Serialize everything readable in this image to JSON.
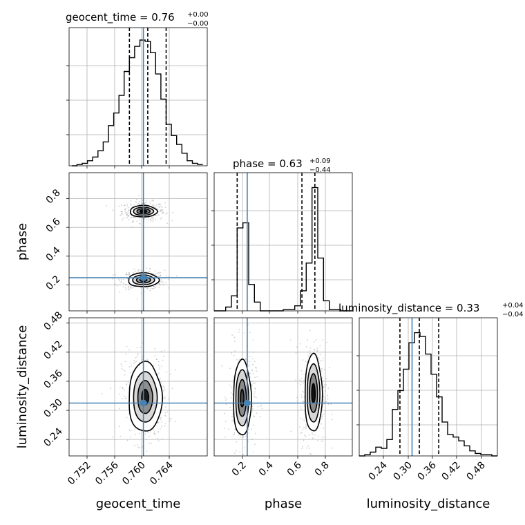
{
  "chart_data": {
    "type": "corner",
    "parameters": [
      "geocent_time",
      "phase",
      "luminosity_distance"
    ],
    "ranges": {
      "geocent_time": [
        0.7497,
        0.7655
      ],
      "phase": [
        0.02,
        0.98
      ],
      "luminosity_distance": [
        0.206,
        0.491
      ]
    },
    "ticks": {
      "geocent_time": [
        "0.752",
        "0.756",
        "0.760",
        "0.764"
      ],
      "phase": [
        "0.2",
        "0.4",
        "0.6",
        "0.8"
      ],
      "luminosity_distance": [
        "0.24",
        "0.30",
        "0.36",
        "0.42",
        "0.48"
      ]
    },
    "truth": {
      "geocent_time": 0.7582,
      "phase": 0.25,
      "luminosity_distance": 0.315
    },
    "colors": {
      "truth": "#4682b4",
      "hist": "#000000",
      "grid": "#b0b0b0"
    },
    "titles": {
      "geocent_time": {
        "text": "geocent_time = 0.76",
        "upper": "+0.00",
        "lower": "−0.00"
      },
      "phase": {
        "text": "phase = 0.63",
        "upper": "+0.09",
        "lower": "−0.44"
      },
      "luminosity_distance": {
        "text": "luminosity_distance = 0.33",
        "upper": "+0.04",
        "lower": "−0.04"
      }
    },
    "quantiles": {
      "geocent_time": [
        0.7566,
        0.7587,
        0.7608
      ],
      "phase": [
        0.18,
        0.63,
        0.72
      ],
      "luminosity_distance": [
        0.29,
        0.33,
        0.37
      ]
    },
    "histograms": {
      "geocent_time": {
        "bins": [
          0.75,
          0.7506,
          0.7512,
          0.7518,
          0.7524,
          0.753,
          0.7536,
          0.7542,
          0.7548,
          0.7554,
          0.756,
          0.7566,
          0.7572,
          0.7578,
          0.7584,
          0.759,
          0.7596,
          0.7602,
          0.7608,
          0.7614,
          0.762,
          0.7626,
          0.7632,
          0.7638,
          0.7644,
          0.765
        ],
        "counts": [
          0.0,
          0.01,
          0.02,
          0.04,
          0.07,
          0.12,
          0.19,
          0.32,
          0.42,
          0.56,
          0.75,
          0.86,
          0.95,
          1.0,
          0.99,
          0.9,
          0.73,
          0.53,
          0.33,
          0.24,
          0.17,
          0.1,
          0.04,
          0.02,
          0.01
        ]
      },
      "phase": {
        "bins": [
          0.02,
          0.06,
          0.1,
          0.14,
          0.18,
          0.22,
          0.26,
          0.3,
          0.34,
          0.38,
          0.42,
          0.46,
          0.5,
          0.54,
          0.58,
          0.62,
          0.66,
          0.7,
          0.74,
          0.78,
          0.82,
          0.86,
          0.9,
          0.94,
          0.98
        ],
        "counts": [
          0.0,
          0.0,
          0.03,
          0.12,
          0.66,
          0.7,
          0.21,
          0.07,
          0.0,
          0.0,
          0.0,
          0.0,
          0.01,
          0.01,
          0.04,
          0.16,
          0.38,
          0.98,
          0.42,
          0.08,
          0.01,
          0.01,
          0.0,
          0.0
        ]
      },
      "luminosity_distance": {
        "bins": [
          0.206,
          0.2174,
          0.2288,
          0.2402,
          0.2516,
          0.263,
          0.2744,
          0.2858,
          0.2972,
          0.3086,
          0.32,
          0.3314,
          0.3428,
          0.3542,
          0.3656,
          0.377,
          0.3884,
          0.3998,
          0.4112,
          0.4226,
          0.434,
          0.4454,
          0.4568,
          0.4682,
          0.4796,
          0.491
        ],
        "counts": [
          0.0,
          0.01,
          0.03,
          0.07,
          0.06,
          0.13,
          0.37,
          0.52,
          0.69,
          0.9,
          0.98,
          0.95,
          0.81,
          0.65,
          0.47,
          0.27,
          0.17,
          0.15,
          0.12,
          0.08,
          0.04,
          0.02,
          0.01,
          0.01,
          0.0
        ]
      }
    },
    "contour_panels": [
      {
        "x": "geocent_time",
        "y": "phase",
        "modes": [
          {
            "center": [
              0.7582,
              0.712
            ],
            "levels": [
              {
                "half_width": [
                  0.00155,
                  0.04
                ],
                "fill": "#ffffff"
              },
              {
                "half_width": [
                  0.00115,
                  0.028
                ],
                "fill": "#d6d6d6"
              },
              {
                "half_width": [
                  0.00075,
                  0.018
                ],
                "fill": "#8a8a8a"
              },
              {
                "half_width": [
                  0.0004,
                  0.009
                ],
                "fill": "#111111"
              }
            ]
          },
          {
            "center": [
              0.7582,
              0.235
            ],
            "levels": [
              {
                "half_width": [
                  0.00175,
                  0.048
                ],
                "fill": "#ffffff"
              },
              {
                "half_width": [
                  0.00125,
                  0.034
                ],
                "fill": "#d6d6d6"
              },
              {
                "half_width": [
                  0.0008,
                  0.021
                ],
                "fill": "#9a9a9a"
              },
              {
                "half_width": [
                  0.0004,
                  0.01
                ],
                "fill": "#555555"
              }
            ]
          }
        ],
        "scatter_spread": [
          0.0022,
          0.06
        ]
      },
      {
        "x": "geocent_time",
        "y": "luminosity_distance",
        "modes": [
          {
            "center": [
              0.7584,
              0.327
            ],
            "levels": [
              {
                "half_width": [
                  0.0019,
                  0.072
                ],
                "fill": "#ffffff"
              },
              {
                "half_width": [
                  0.00135,
                  0.052
                ],
                "fill": "#d8d8d8"
              },
              {
                "half_width": [
                  0.00085,
                  0.034
                ],
                "fill": "#8e8e8e"
              },
              {
                "half_width": [
                  0.0004,
                  0.016
                ],
                "fill": "#1a1a1a"
              }
            ]
          }
        ],
        "scatter_spread": [
          0.0024,
          0.085
        ]
      },
      {
        "x": "phase",
        "y": "luminosity_distance",
        "modes": [
          {
            "center": [
              0.215,
              0.325
            ],
            "levels": [
              {
                "half_width": [
                  0.062,
                  0.078
                ],
                "fill": "#ffffff"
              },
              {
                "half_width": [
                  0.045,
                  0.058
                ],
                "fill": "#d6d6d6"
              },
              {
                "half_width": [
                  0.028,
                  0.038
                ],
                "fill": "#8a8a8a"
              },
              {
                "half_width": [
                  0.012,
                  0.018
                ],
                "fill": "#444444"
              }
            ]
          },
          {
            "center": [
              0.71,
              0.335
            ],
            "levels": [
              {
                "half_width": [
                  0.06,
                  0.08
                ],
                "fill": "#ffffff"
              },
              {
                "half_width": [
                  0.044,
                  0.06
                ],
                "fill": "#d6d6d6"
              },
              {
                "half_width": [
                  0.028,
                  0.04
                ],
                "fill": "#8a8a8a"
              },
              {
                "half_width": [
                  0.012,
                  0.02
                ],
                "fill": "#111111"
              }
            ]
          }
        ],
        "scatter_spread": [
          0.085,
          0.095
        ]
      }
    ]
  }
}
